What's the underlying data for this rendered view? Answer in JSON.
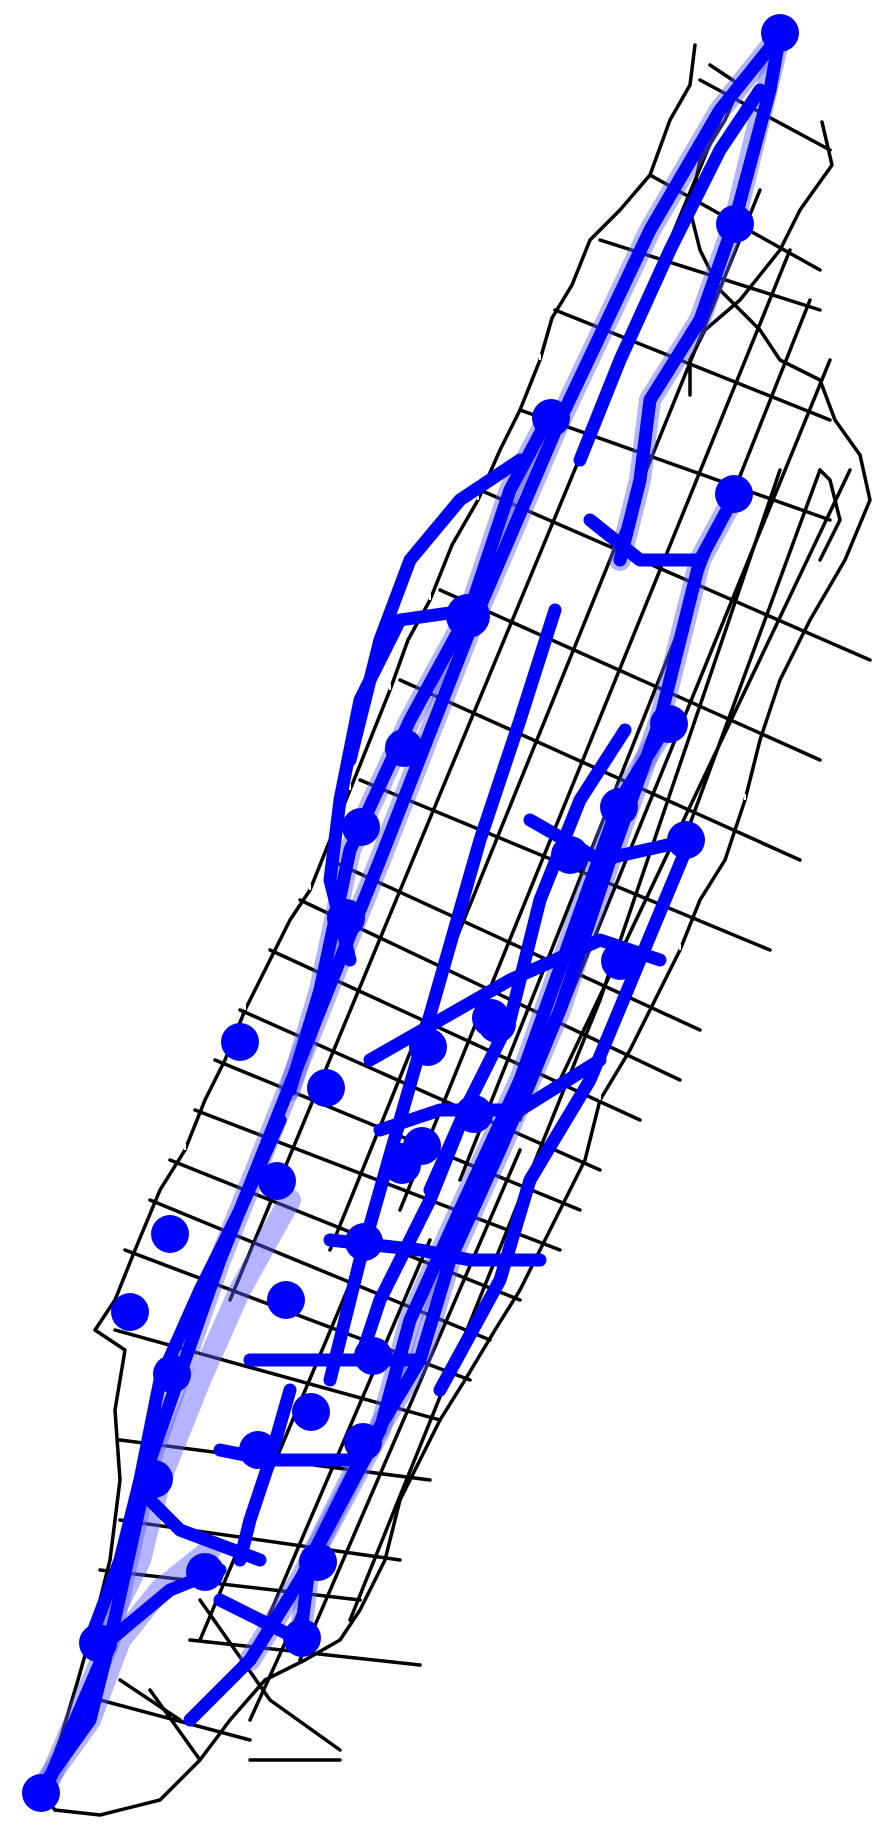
{
  "map": {
    "background_color": "#ffffff",
    "street_color": "#000000",
    "route_color": "#0000ff",
    "route_halo_color": "#5a5aff",
    "station_color": "#0000ff",
    "street_gap_color": "#ffffff",
    "icons": {
      "station": "circle-marker"
    }
  }
}
